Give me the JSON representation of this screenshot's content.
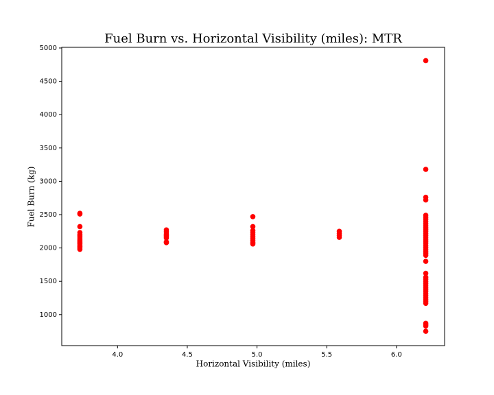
{
  "chart_data": {
    "type": "scatter",
    "title": "Fuel Burn vs. Horizontal Visibility (miles): MTR",
    "x_label": "Horizontal Visibility (miles)",
    "y_label": "Fuel Burn (kg)",
    "color": "#ff0000",
    "xlim": [
      3.6,
      6.345
    ],
    "ylim": [
      535,
      5010
    ],
    "xticks": [
      {
        "value": 4,
        "label": "4.0"
      },
      {
        "value": 4.5,
        "label": "4.5"
      },
      {
        "value": 5,
        "label": "5.0"
      },
      {
        "value": 5.5,
        "label": "5.5"
      },
      {
        "value": 6,
        "label": "6.0"
      }
    ],
    "yticks": [
      1000,
      1500,
      2000,
      2500,
      3000,
      3500,
      4000,
      4500,
      5000
    ],
    "x": [
      3.73,
      3.73,
      3.73,
      3.73,
      3.73,
      3.73,
      3.73,
      3.73,
      3.73,
      3.73,
      3.73,
      3.73,
      3.73,
      3.73,
      3.73,
      4.35,
      4.35,
      4.35,
      4.35,
      4.35,
      4.35,
      4.35,
      4.35,
      4.97,
      4.97,
      4.97,
      4.97,
      4.97,
      4.97,
      4.97,
      4.97,
      4.97,
      4.97,
      5.59,
      5.59,
      5.59,
      5.59,
      6.21,
      6.21,
      6.21,
      6.21,
      6.21,
      6.21,
      6.21,
      6.21,
      6.21,
      6.21,
      6.21,
      6.21,
      6.21,
      6.21,
      6.21,
      6.21,
      6.21,
      6.21,
      6.21,
      6.21,
      6.21,
      6.21,
      6.21,
      6.21,
      6.21,
      6.21,
      6.21,
      6.21,
      6.21,
      6.21,
      6.21,
      6.21,
      6.21,
      6.21,
      6.21,
      6.21,
      6.21,
      6.21,
      6.21,
      6.21,
      6.21,
      6.21,
      6.21,
      6.21,
      6.21
    ],
    "values": [
      2520,
      2510,
      2320,
      2230,
      2200,
      2180,
      2150,
      2120,
      2100,
      2080,
      2060,
      2040,
      2020,
      2000,
      1980,
      2270,
      2240,
      2210,
      2190,
      2170,
      2150,
      2090,
      2080,
      2470,
      2320,
      2260,
      2230,
      2200,
      2170,
      2140,
      2110,
      2080,
      2060,
      2250,
      2220,
      2190,
      2160,
      4810,
      3180,
      2760,
      2720,
      2490,
      2460,
      2430,
      2400,
      2370,
      2340,
      2310,
      2280,
      2250,
      2220,
      2190,
      2160,
      2130,
      2100,
      2070,
      2040,
      2010,
      1980,
      1950,
      1920,
      1890,
      1800,
      1620,
      1560,
      1530,
      1500,
      1470,
      1440,
      1410,
      1380,
      1350,
      1320,
      1290,
      1260,
      1230,
      1200,
      1170,
      870,
      850,
      830,
      750
    ]
  }
}
